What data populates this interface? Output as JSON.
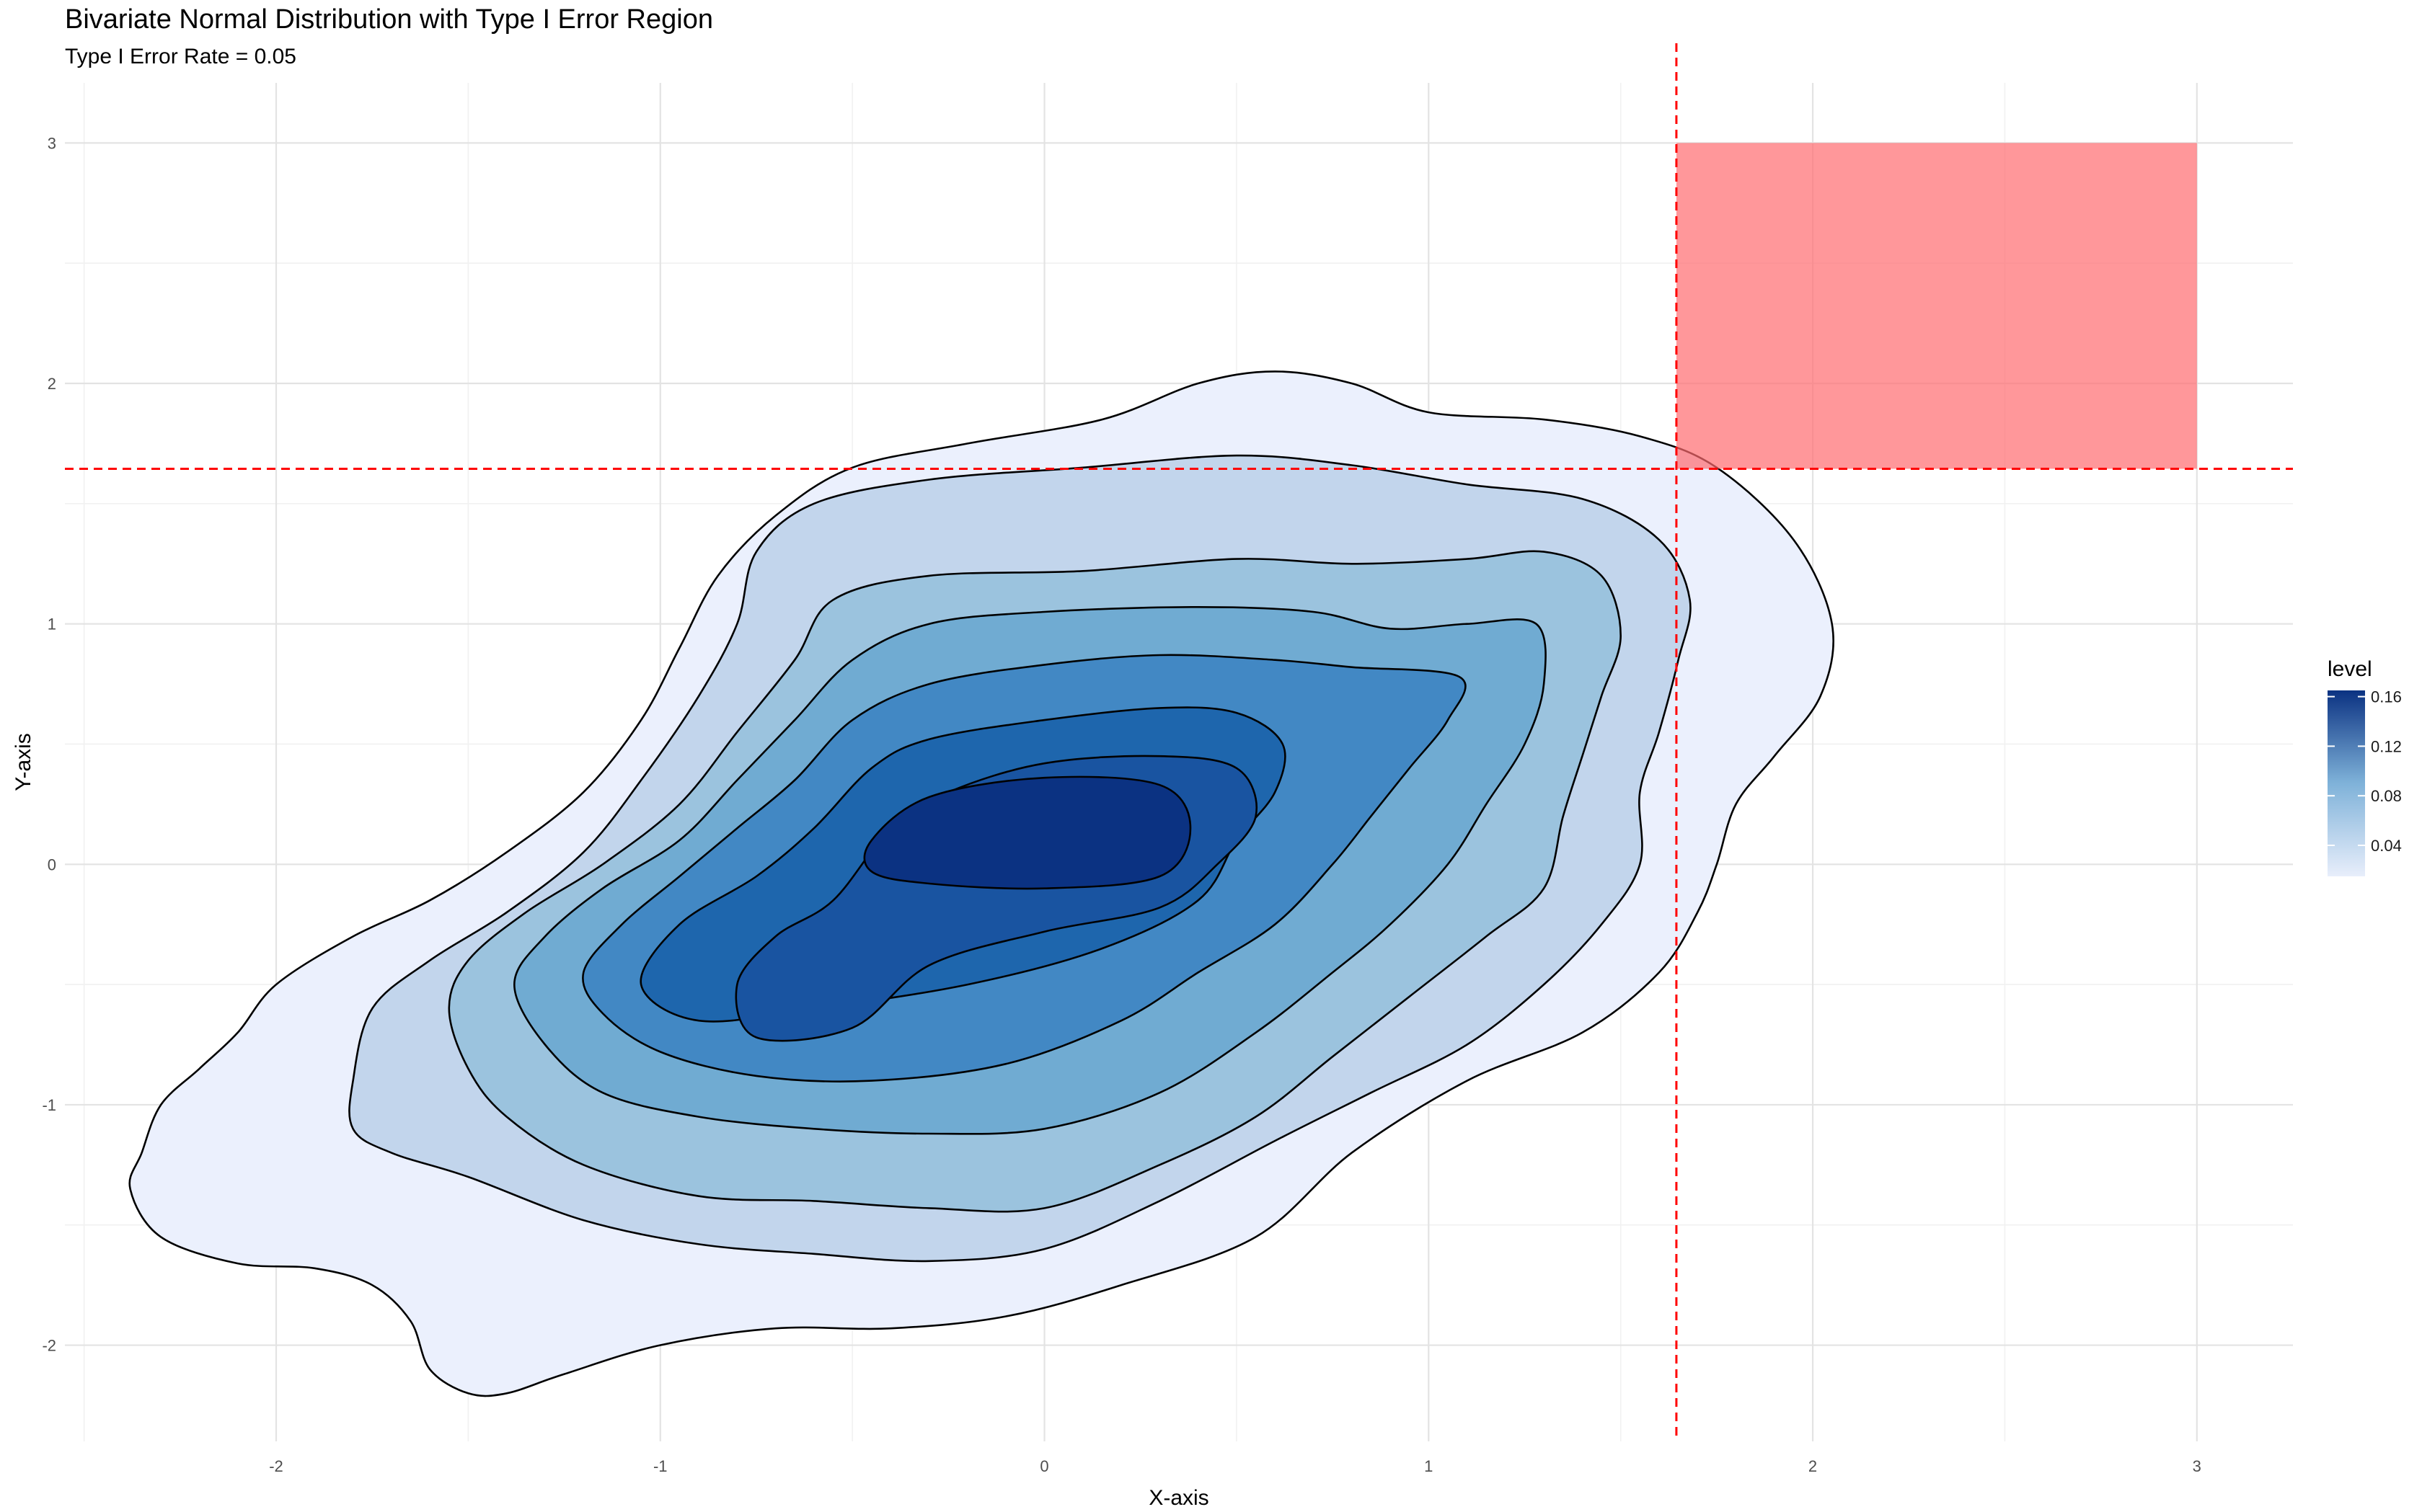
{
  "chart_data": {
    "type": "contour",
    "title": "Bivariate Normal Distribution with Type I Error Region",
    "subtitle": "Type I Error Rate = 0.05",
    "xlabel": "X-axis",
    "ylabel": "Y-axis",
    "xlim": [
      -2.55,
      3.25
    ],
    "ylim": [
      -2.4,
      3.25
    ],
    "x_ticks": [
      -2,
      -1,
      0,
      1,
      2,
      3
    ],
    "y_ticks": [
      -2,
      -1,
      0,
      1,
      2,
      3
    ],
    "x_tick_labels": [
      "-2",
      "-1",
      "0",
      "1",
      "2",
      "3"
    ],
    "y_tick_labels": [
      "-2",
      "-1",
      "0",
      "1",
      "2",
      "3"
    ],
    "grid": true,
    "critical_value": 1.645,
    "error_region": {
      "xmin": 1.645,
      "xmax": 3,
      "ymin": 1.645,
      "ymax": 3,
      "color": "#FF6B6F"
    },
    "reference_line_color": "#FF0000",
    "legend": {
      "title": "level",
      "position": "right",
      "labels": [
        "0.16",
        "0.12",
        "0.08",
        "0.04"
      ],
      "values": [
        0.16,
        0.12,
        0.08,
        0.04
      ],
      "range": [
        0.015,
        0.165
      ],
      "low_color": "#E8EEFB",
      "high_color": "#0B3282"
    },
    "contour_levels": [
      {
        "level": 0.02,
        "color": "#EBF0FD",
        "points": [
          [
            -2.35,
            -1.2
          ],
          [
            -2.3,
            -1.0
          ],
          [
            -2.2,
            -0.85
          ],
          [
            -2.1,
            -0.7
          ],
          [
            -2.0,
            -0.5
          ],
          [
            -1.8,
            -0.3
          ],
          [
            -1.6,
            -0.15
          ],
          [
            -1.4,
            0.05
          ],
          [
            -1.2,
            0.3
          ],
          [
            -1.05,
            0.6
          ],
          [
            -0.95,
            0.9
          ],
          [
            -0.85,
            1.2
          ],
          [
            -0.7,
            1.45
          ],
          [
            -0.5,
            1.65
          ],
          [
            -0.2,
            1.75
          ],
          [
            0.15,
            1.85
          ],
          [
            0.4,
            2.0
          ],
          [
            0.6,
            2.05
          ],
          [
            0.8,
            2.0
          ],
          [
            1.0,
            1.88
          ],
          [
            1.3,
            1.85
          ],
          [
            1.55,
            1.78
          ],
          [
            1.75,
            1.65
          ],
          [
            1.95,
            1.35
          ],
          [
            2.05,
            1.0
          ],
          [
            2.02,
            0.7
          ],
          [
            1.9,
            0.45
          ],
          [
            1.8,
            0.25
          ],
          [
            1.75,
            0.0
          ],
          [
            1.7,
            -0.2
          ],
          [
            1.6,
            -0.45
          ],
          [
            1.4,
            -0.7
          ],
          [
            1.1,
            -0.9
          ],
          [
            0.8,
            -1.2
          ],
          [
            0.55,
            -1.55
          ],
          [
            0.2,
            -1.75
          ],
          [
            -0.1,
            -1.88
          ],
          [
            -0.4,
            -1.93
          ],
          [
            -0.7,
            -1.93
          ],
          [
            -1.0,
            -2.0
          ],
          [
            -1.25,
            -2.12
          ],
          [
            -1.4,
            -2.2
          ],
          [
            -1.5,
            -2.2
          ],
          [
            -1.6,
            -2.1
          ],
          [
            -1.65,
            -1.9
          ],
          [
            -1.75,
            -1.75
          ],
          [
            -1.9,
            -1.68
          ],
          [
            -2.1,
            -1.66
          ],
          [
            -2.3,
            -1.55
          ],
          [
            -2.38,
            -1.35
          ]
        ]
      },
      {
        "level": 0.04,
        "color": "#C2D5EC",
        "points": [
          [
            -1.8,
            -1.1
          ],
          [
            -1.8,
            -0.9
          ],
          [
            -1.75,
            -0.6
          ],
          [
            -1.6,
            -0.4
          ],
          [
            -1.4,
            -0.2
          ],
          [
            -1.2,
            0.05
          ],
          [
            -1.05,
            0.35
          ],
          [
            -0.9,
            0.7
          ],
          [
            -0.8,
            1.0
          ],
          [
            -0.75,
            1.3
          ],
          [
            -0.6,
            1.5
          ],
          [
            -0.3,
            1.6
          ],
          [
            0.1,
            1.65
          ],
          [
            0.5,
            1.7
          ],
          [
            0.8,
            1.66
          ],
          [
            1.1,
            1.58
          ],
          [
            1.4,
            1.52
          ],
          [
            1.6,
            1.35
          ],
          [
            1.68,
            1.1
          ],
          [
            1.65,
            0.85
          ],
          [
            1.6,
            0.55
          ],
          [
            1.55,
            0.3
          ],
          [
            1.55,
            0.0
          ],
          [
            1.45,
            -0.25
          ],
          [
            1.3,
            -0.5
          ],
          [
            1.1,
            -0.75
          ],
          [
            0.85,
            -0.95
          ],
          [
            0.6,
            -1.15
          ],
          [
            0.3,
            -1.4
          ],
          [
            0.0,
            -1.6
          ],
          [
            -0.3,
            -1.65
          ],
          [
            -0.6,
            -1.62
          ],
          [
            -0.9,
            -1.58
          ],
          [
            -1.2,
            -1.48
          ],
          [
            -1.5,
            -1.3
          ],
          [
            -1.7,
            -1.2
          ]
        ]
      },
      {
        "level": 0.06,
        "color": "#9BC3DE",
        "points": [
          [
            -1.55,
            -0.6
          ],
          [
            -1.5,
            -0.4
          ],
          [
            -1.35,
            -0.2
          ],
          [
            -1.15,
            0.0
          ],
          [
            -0.95,
            0.25
          ],
          [
            -0.8,
            0.55
          ],
          [
            -0.65,
            0.85
          ],
          [
            -0.55,
            1.1
          ],
          [
            -0.3,
            1.2
          ],
          [
            0.1,
            1.22
          ],
          [
            0.5,
            1.27
          ],
          [
            0.8,
            1.25
          ],
          [
            1.1,
            1.27
          ],
          [
            1.3,
            1.3
          ],
          [
            1.45,
            1.2
          ],
          [
            1.5,
            0.95
          ],
          [
            1.45,
            0.7
          ],
          [
            1.4,
            0.45
          ],
          [
            1.35,
            0.2
          ],
          [
            1.3,
            -0.1
          ],
          [
            1.15,
            -0.3
          ],
          [
            0.95,
            -0.55
          ],
          [
            0.75,
            -0.8
          ],
          [
            0.55,
            -1.05
          ],
          [
            0.3,
            -1.25
          ],
          [
            0.0,
            -1.43
          ],
          [
            -0.3,
            -1.43
          ],
          [
            -0.6,
            -1.4
          ],
          [
            -0.9,
            -1.38
          ],
          [
            -1.2,
            -1.25
          ],
          [
            -1.4,
            -1.05
          ],
          [
            -1.5,
            -0.85
          ]
        ]
      },
      {
        "level": 0.08,
        "color": "#70ABD2",
        "points": [
          [
            -1.38,
            -0.5
          ],
          [
            -1.3,
            -0.3
          ],
          [
            -1.15,
            -0.1
          ],
          [
            -0.95,
            0.1
          ],
          [
            -0.8,
            0.35
          ],
          [
            -0.65,
            0.6
          ],
          [
            -0.5,
            0.85
          ],
          [
            -0.3,
            1.0
          ],
          [
            0.0,
            1.05
          ],
          [
            0.4,
            1.07
          ],
          [
            0.7,
            1.05
          ],
          [
            0.9,
            0.98
          ],
          [
            1.1,
            1.0
          ],
          [
            1.28,
            1.0
          ],
          [
            1.3,
            0.75
          ],
          [
            1.25,
            0.5
          ],
          [
            1.15,
            0.25
          ],
          [
            1.05,
            0.0
          ],
          [
            0.9,
            -0.25
          ],
          [
            0.75,
            -0.45
          ],
          [
            0.55,
            -0.7
          ],
          [
            0.3,
            -0.95
          ],
          [
            0.0,
            -1.1
          ],
          [
            -0.3,
            -1.12
          ],
          [
            -0.6,
            -1.1
          ],
          [
            -0.9,
            -1.05
          ],
          [
            -1.15,
            -0.95
          ],
          [
            -1.3,
            -0.75
          ]
        ]
      },
      {
        "level": 0.1,
        "color": "#4288C4",
        "points": [
          [
            -1.2,
            -0.45
          ],
          [
            -1.1,
            -0.25
          ],
          [
            -0.95,
            -0.05
          ],
          [
            -0.8,
            0.15
          ],
          [
            -0.65,
            0.35
          ],
          [
            -0.5,
            0.6
          ],
          [
            -0.3,
            0.75
          ],
          [
            0.0,
            0.83
          ],
          [
            0.3,
            0.87
          ],
          [
            0.6,
            0.85
          ],
          [
            0.8,
            0.82
          ],
          [
            1.08,
            0.78
          ],
          [
            1.05,
            0.6
          ],
          [
            0.95,
            0.4
          ],
          [
            0.85,
            0.2
          ],
          [
            0.75,
            0.0
          ],
          [
            0.6,
            -0.25
          ],
          [
            0.4,
            -0.45
          ],
          [
            0.2,
            -0.65
          ],
          [
            -0.1,
            -0.83
          ],
          [
            -0.45,
            -0.9
          ],
          [
            -0.75,
            -0.88
          ],
          [
            -1.0,
            -0.78
          ],
          [
            -1.15,
            -0.62
          ]
        ]
      },
      {
        "level": 0.12,
        "color": "#1E66AD",
        "points": [
          [
            -1.05,
            -0.5
          ],
          [
            -0.95,
            -0.25
          ],
          [
            -0.75,
            -0.05
          ],
          [
            -0.6,
            0.15
          ],
          [
            -0.45,
            0.4
          ],
          [
            -0.3,
            0.52
          ],
          [
            0.0,
            0.6
          ],
          [
            0.3,
            0.65
          ],
          [
            0.5,
            0.63
          ],
          [
            0.62,
            0.5
          ],
          [
            0.6,
            0.3
          ],
          [
            0.5,
            0.1
          ],
          [
            0.4,
            -0.15
          ],
          [
            0.15,
            -0.35
          ],
          [
            -0.2,
            -0.5
          ],
          [
            -0.6,
            -0.6
          ],
          [
            -0.9,
            -0.65
          ]
        ]
      },
      {
        "level": 0.14,
        "color": "#1954A1",
        "points": [
          [
            -0.8,
            -0.5
          ],
          [
            -0.7,
            -0.3
          ],
          [
            -0.55,
            -0.15
          ],
          [
            -0.4,
            0.15
          ],
          [
            -0.25,
            0.3
          ],
          [
            0.0,
            0.42
          ],
          [
            0.3,
            0.45
          ],
          [
            0.5,
            0.4
          ],
          [
            0.55,
            0.2
          ],
          [
            0.45,
            0.0
          ],
          [
            0.3,
            -0.18
          ],
          [
            0.0,
            -0.28
          ],
          [
            -0.3,
            -0.42
          ],
          [
            -0.5,
            -0.68
          ],
          [
            -0.75,
            -0.72
          ]
        ]
      },
      {
        "level": 0.16,
        "color": "#0B3282",
        "points": [
          [
            -0.45,
            0.1
          ],
          [
            -0.3,
            0.28
          ],
          [
            0.0,
            0.36
          ],
          [
            0.3,
            0.33
          ],
          [
            0.38,
            0.15
          ],
          [
            0.3,
            -0.05
          ],
          [
            0.0,
            -0.1
          ],
          [
            -0.3,
            -0.08
          ],
          [
            -0.45,
            -0.03
          ]
        ]
      }
    ]
  }
}
